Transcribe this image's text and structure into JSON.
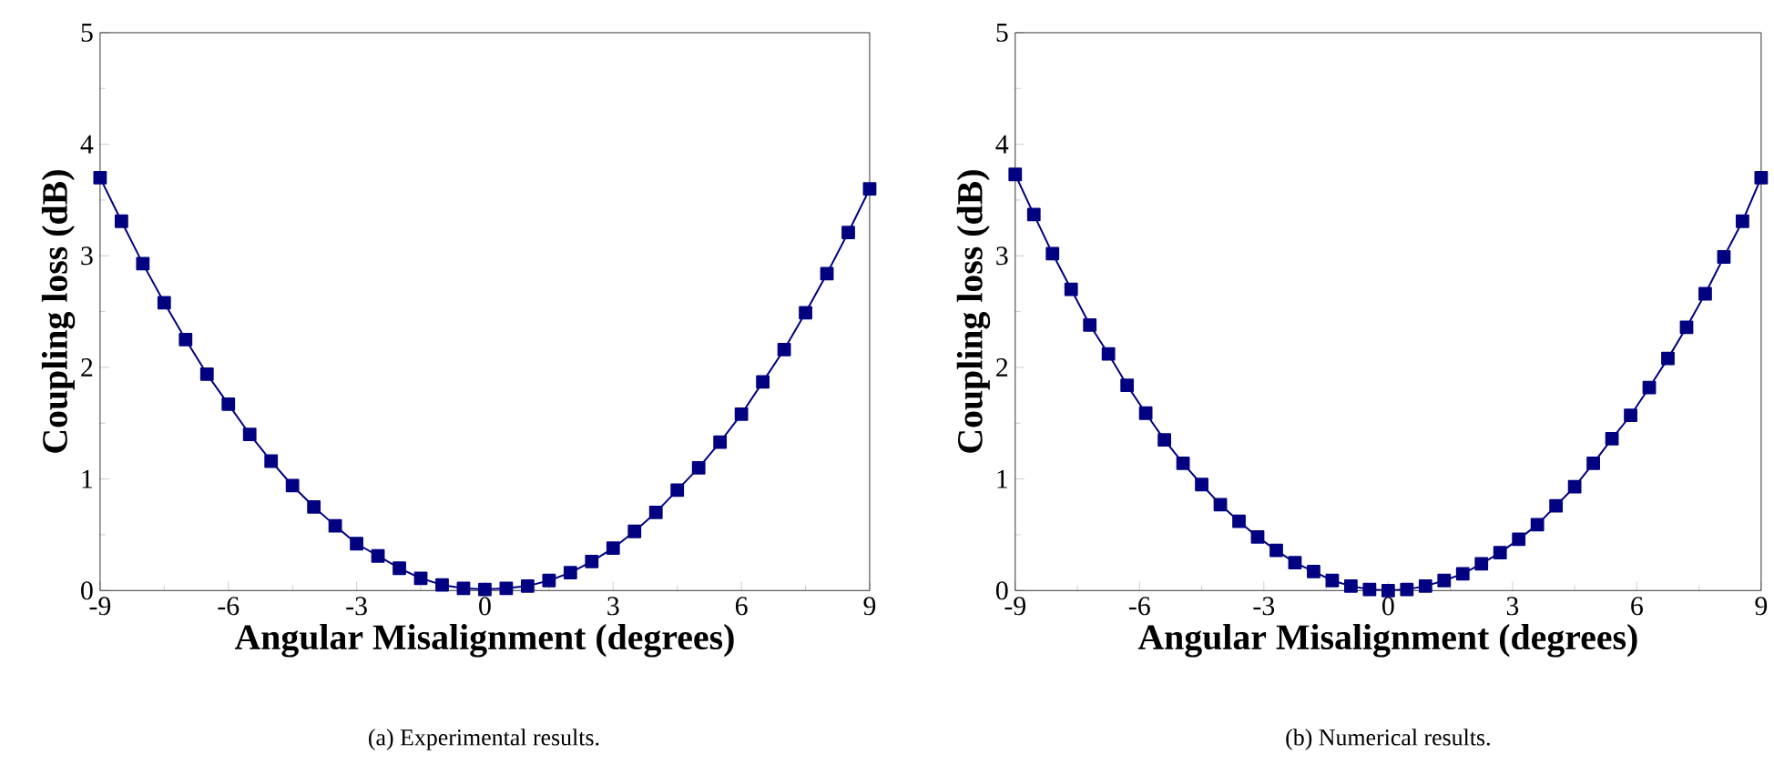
{
  "chart_data": [
    {
      "type": "line",
      "xlabel": "Angular Misalignment (degrees)",
      "ylabel": "Coupling loss (dB)",
      "annotations": [
        "(a)  Experimental results."
      ],
      "marker": "square",
      "line_style": "solid",
      "xlim": [
        -9,
        9
      ],
      "ylim": [
        0,
        5
      ],
      "xticks": [
        -9,
        -6,
        -3,
        0,
        3,
        6,
        9
      ],
      "yticks": [
        0,
        1,
        2,
        3,
        4,
        5
      ],
      "x": [
        -9,
        -8.5,
        -8,
        -7.5,
        -7,
        -6.5,
        -6,
        -5.5,
        -5,
        -4.5,
        -4,
        -3.5,
        -3,
        -2.5,
        -2,
        -1.5,
        -1,
        -0.5,
        0,
        0.5,
        1,
        1.5,
        2,
        2.5,
        3,
        3.5,
        4,
        4.5,
        5,
        5.5,
        6,
        6.5,
        7,
        7.5,
        8,
        8.5,
        9
      ],
      "series": [
        {
          "color": "#000080",
          "values": [
            3.7,
            3.31,
            2.93,
            2.58,
            2.25,
            1.94,
            1.67,
            1.4,
            1.16,
            0.94,
            0.75,
            0.58,
            0.42,
            0.31,
            0.2,
            0.11,
            0.05,
            0.02,
            0.01,
            0.02,
            0.04,
            0.09,
            0.16,
            0.26,
            0.38,
            0.53,
            0.7,
            0.9,
            1.1,
            1.33,
            1.58,
            1.87,
            2.16,
            2.49,
            2.84,
            3.21,
            3.6
          ]
        }
      ]
    },
    {
      "type": "line",
      "xlabel": "Angular Misalignment (degrees)",
      "ylabel": "Coupling loss (dB)",
      "annotations": [
        "(b)  Numerical results."
      ],
      "marker": "square",
      "line_style": "solid",
      "xlim": [
        -9,
        9
      ],
      "ylim": [
        0,
        5
      ],
      "xticks": [
        -9,
        -6,
        -3,
        0,
        3,
        6,
        9
      ],
      "yticks": [
        0,
        1,
        2,
        3,
        4,
        5
      ],
      "x": [
        -9,
        -8.55,
        -8.1,
        -7.65,
        -7.2,
        -6.75,
        -6.3,
        -5.85,
        -5.4,
        -4.95,
        -4.5,
        -4.05,
        -3.6,
        -3.15,
        -2.7,
        -2.25,
        -1.8,
        -1.35,
        -0.9,
        -0.45,
        0,
        0.45,
        0.9,
        1.35,
        1.8,
        2.25,
        2.7,
        3.15,
        3.6,
        4.05,
        4.5,
        4.95,
        5.4,
        5.85,
        6.3,
        6.75,
        7.2,
        7.65,
        8.1,
        8.55,
        9
      ],
      "series": [
        {
          "color": "#000080",
          "values": [
            3.73,
            3.37,
            3.02,
            2.7,
            2.38,
            2.12,
            1.84,
            1.59,
            1.35,
            1.14,
            0.95,
            0.77,
            0.62,
            0.48,
            0.36,
            0.25,
            0.17,
            0.09,
            0.04,
            0.01,
            0.0,
            0.01,
            0.04,
            0.09,
            0.15,
            0.24,
            0.34,
            0.46,
            0.59,
            0.76,
            0.93,
            1.14,
            1.36,
            1.57,
            1.82,
            2.08,
            2.36,
            2.66,
            2.99,
            3.31,
            3.7
          ]
        }
      ]
    }
  ]
}
